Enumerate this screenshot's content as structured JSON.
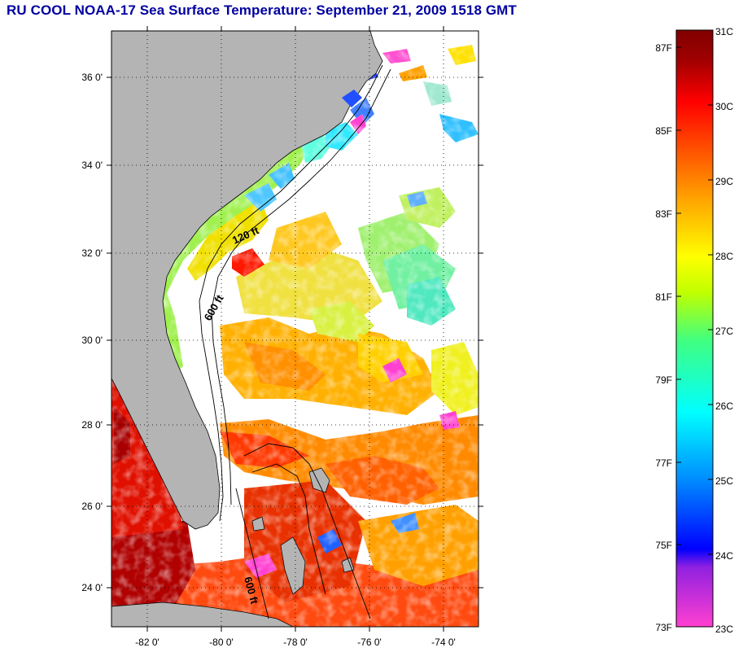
{
  "title": "RU COOL  NOAA-17  Sea Surface Temperature:  September 21, 2009 1518 GMT",
  "map": {
    "lat_ticks": [
      "36 0'",
      "34 0'",
      "32 0'",
      "30 0'",
      "28 0'",
      "26 0'",
      "24 0'"
    ],
    "lon_ticks": [
      "-82 0'",
      "-80 0'",
      "-78 0'",
      "-76 0'",
      "-74 0'"
    ],
    "lat_range": [
      23.0,
      37.0
    ],
    "lon_range": [
      -83.0,
      -73.0
    ],
    "contour_labels": [
      "120 ft",
      "600 ft",
      "600 ft"
    ],
    "land_color": "#b4b4b4",
    "grid": "dotted"
  },
  "colorbar": {
    "celsius_labels": [
      "31C",
      "30C",
      "29C",
      "28C",
      "27C",
      "26C",
      "25C",
      "24C",
      "23C"
    ],
    "fahrenheit_labels": [
      "87F",
      "85F",
      "83F",
      "81F",
      "79F",
      "77F",
      "75F",
      "73F"
    ],
    "range_c": [
      23,
      31
    ],
    "range_f": [
      73.4,
      87.8
    ],
    "colors": [
      "#ff40d0",
      "#9020e0",
      "#0000ff",
      "#0090ff",
      "#00ffff",
      "#40ff80",
      "#c0ff00",
      "#ffff00",
      "#ffa000",
      "#ff5000",
      "#ff0000",
      "#a00000",
      "#800000"
    ]
  }
}
